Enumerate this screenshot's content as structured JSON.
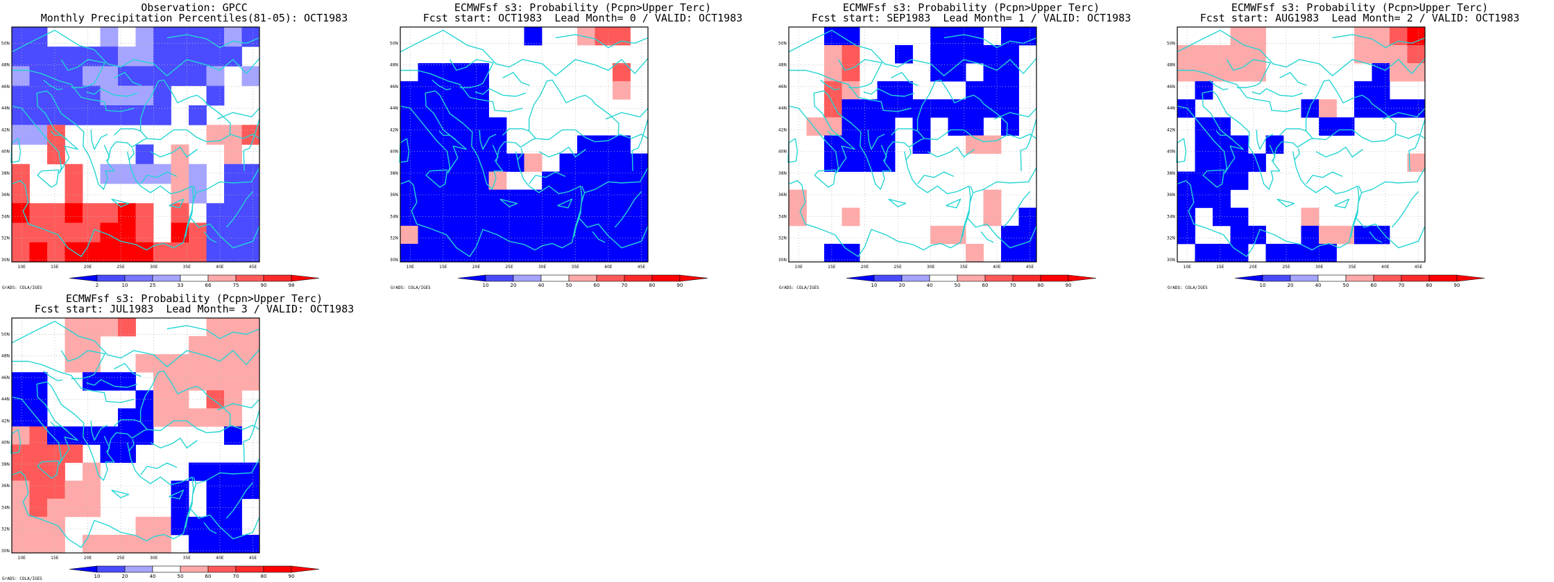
{
  "colors": {
    "neg3": "#0000ff",
    "neg2": "#4b4bff",
    "neg1": "#a5a5ff",
    "pos1": "#ffaaaa",
    "pos2": "#ff5a5a",
    "pos3": "#ff0000",
    "coast": "#24d4d4",
    "frame": "#000000"
  },
  "map_axes": {
    "lat_labels": [
      "30N",
      "32N",
      "34N",
      "36N",
      "38N",
      "40N",
      "42N",
      "44N",
      "46N",
      "48N",
      "50N"
    ],
    "lon_labels": [
      "10E",
      "15E",
      "20E",
      "25E",
      "30E",
      "35E",
      "40E",
      "45E"
    ]
  },
  "credit": "GrADS: COLA/IGES",
  "panels": [
    {
      "id": "observation",
      "title1": "Observation: GPCC",
      "title2": "Monthly Precipitation Percentiles(81-05): OCT1983",
      "legend": {
        "labels": [
          "2",
          "10",
          "25",
          "33",
          "66",
          "75",
          "90",
          "98"
        ],
        "colors": [
          "#0000ff",
          "#4b4bff",
          "#7878ff",
          "#a5a5ff",
          "#ffffff",
          "#ffaaaa",
          "#ff5a5a",
          "#ff2b2b",
          "#ff0000"
        ]
      },
      "grid": [
        "BB...A.ABBBBAB",
        "BBBBBBAABBBBB.",
        "ABBBAABBBBBA.A",
        "BBBBBAAAB..B..",
        "BBBBBBBBB.B...",
        "AAQ........PPQ",
        "..Q....B.P..P.",
        "Q..Q.AAAAPA.BB",
        "Q..Q.....PA.BB",
        "RQQRQQRQ.Q.BBB",
        "QQQQQRRQ.RQBBB",
        "QRQRRRRRQQQBBB"
      ]
    },
    {
      "id": "lead0",
      "title1": "ECMWFsf s3: Probability (Pcpn>Upper Terc)",
      "title2": "Fcst start: OCT1983  Lead Month= 0 / VALID: OCT1983",
      "legend": {
        "labels": [
          "10",
          "20",
          "40",
          "50",
          "60",
          "70",
          "80",
          "90"
        ],
        "colors": [
          "#0000ff",
          "#4b4bff",
          "#a5a5ff",
          "#ffffff",
          "#ffaaaa",
          "#ff5a5a",
          "#ff2b2b",
          "#ff0000",
          "#ff0000"
        ]
      },
      "grid": [
        ".......C..PQQ.",
        "..............",
        ".CCCC.......Q.",
        "CCCCC.......P.",
        "CCCCC.........",
        "CCCCCC........",
        "CCCCCC....CCC.",
        "CCCCCCCP.CCCCC",
        "CCCCCP..CCCCCC",
        "CCCCCCCCCCCCCC",
        "CCCCCCCCCCCCCC",
        "PCCCCCCCCCCCCC",
        "CCCCCCCCCCCCCC"
      ]
    },
    {
      "id": "lead1",
      "title1": "ECMWFsf s3: Probability (Pcpn>Upper Terc)",
      "title2": "Fcst start: SEP1983  Lead Month= 1 / VALID: OCT1983",
      "legend": {
        "labels": [
          "10",
          "20",
          "40",
          "50",
          "60",
          "70",
          "80",
          "90"
        ],
        "colors": [
          "#0000ff",
          "#4b4bff",
          "#a5a5ff",
          "#ffffff",
          "#ffaaaa",
          "#ff5a5a",
          "#ff2b2b",
          "#ff0000",
          "#ff0000"
        ]
      },
      "grid": [
        "..CC....CCC.CC",
        "..PQ..C.CCCCC.",
        "..PQ....CC.CC.",
        "..QP.CC...CCC.",
        "..QCCCCCCCCCC.",
        ".PPCCC.C.CC.C.",
        "..CCCC.C..PP..",
        "..CCCC........",
        "..............",
        "P..........P..",
        "P..P.......P.C",
        "........PP..CC",
        "..CC......P.CC"
      ]
    },
    {
      "id": "lead2",
      "title1": "ECMWFsf s3: Probability (Pcpn>Upper Terc)",
      "title2": "Fcst start: AUG1983  Lead Month= 2 / VALID: OCT1983",
      "legend": {
        "labels": [
          "10",
          "20",
          "40",
          "50",
          "60",
          "70",
          "80",
          "90"
        ],
        "colors": [
          "#0000ff",
          "#4b4bff",
          "#a5a5ff",
          "#ffffff",
          "#ffaaaa",
          "#ff5a5a",
          "#ff2b2b",
          "#ff0000",
          "#ff0000"
        ]
      },
      "grid": [
        "...PP.....PPQR",
        "PPPPP.....PPPQ",
        "PPPPP......CPP",
        ".C........CC..",
        "C......CP.CCCC",
        ".CC.....CC....",
        ".CCC.C........",
        ".CCCC........P",
        "CCCC..........",
        "CCC...........",
        "C.CC...P......",
        "C..CC..CPPCC..",
        ".CCC.CCCC....."
      ]
    },
    {
      "id": "lead3",
      "title1": "ECMWFsf s3: Probability (Pcpn>Upper Terc)",
      "title2": "Fcst start: JUL1983  Lead Month= 3 / VALID: OCT1983",
      "legend": {
        "labels": [
          "10",
          "20",
          "40",
          "50",
          "60",
          "70",
          "80",
          "90"
        ],
        "colors": [
          "#0000ff",
          "#4b4bff",
          "#a5a5ff",
          "#ffffff",
          "#ffaaaa",
          "#ff5a5a",
          "#ff2b2b",
          "#ff0000",
          "#ff0000"
        ]
      },
      "grid": [
        "...PPPQ....PPP",
        "...PP.....PPPP",
        "...PP..PPPPPPP",
        "CC..CCC.PPPPPP",
        "CC.....CPP.QP.",
        "CC....CCPPPPP.",
        "PQCCCCCC....C.",
        "QQQQ.CC.......",
        "QQQ.P.....CCCC",
        "PQQPP....C.CCC",
        "PQPPP....C.CC.",
        "PPP....PPCCCC.",
        "PPP.PPPPP.CCCC"
      ]
    }
  ]
}
